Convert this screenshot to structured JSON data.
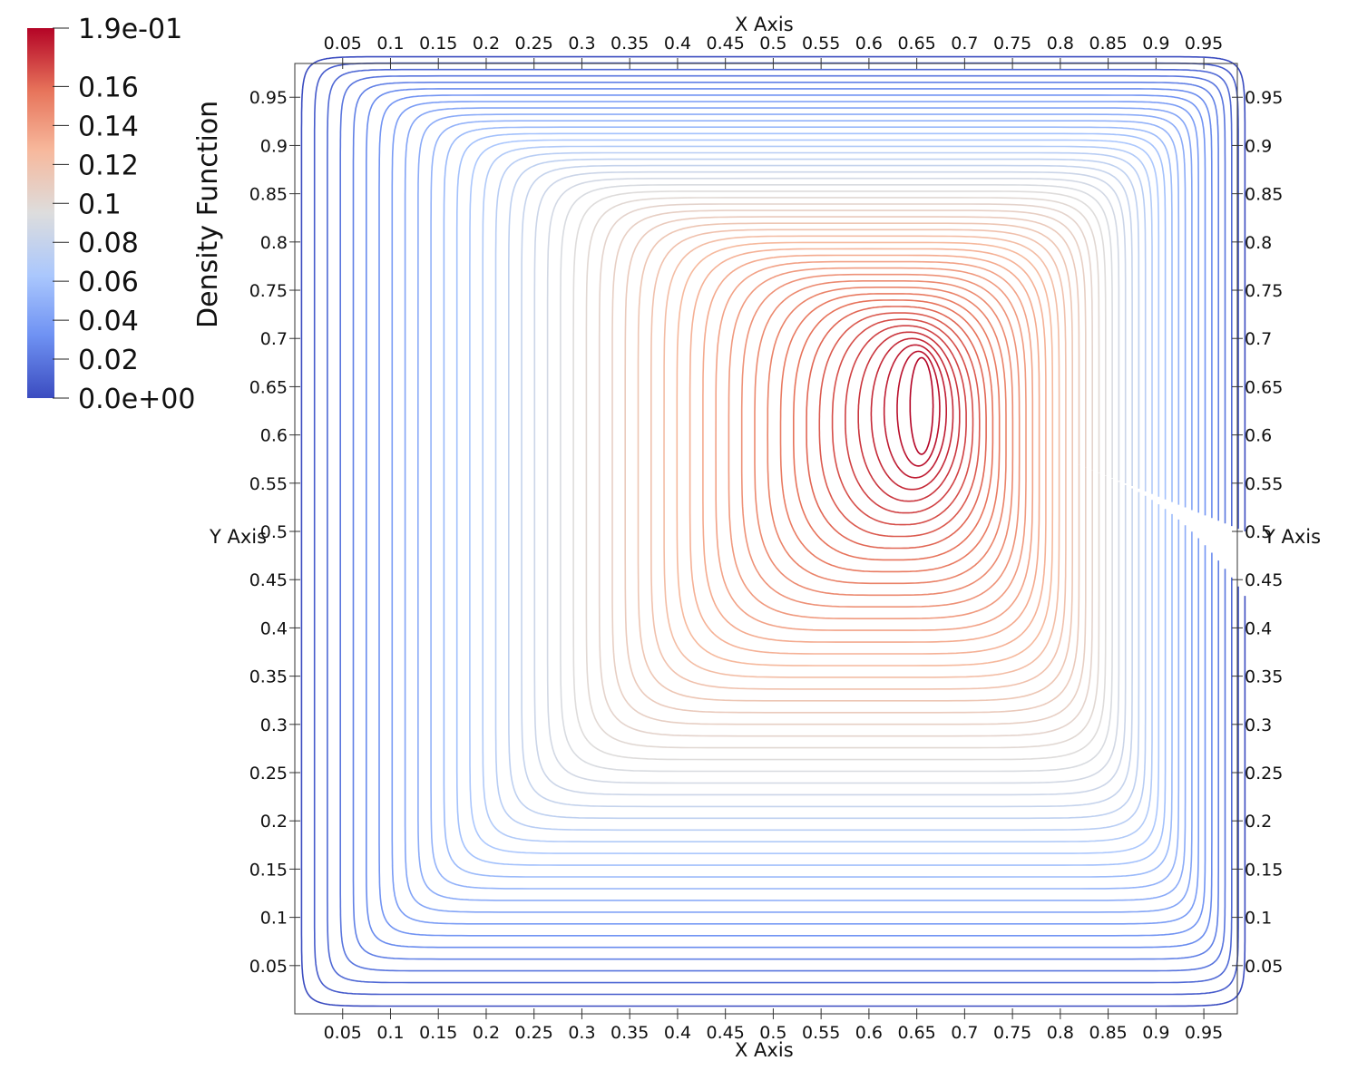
{
  "chart_data": {
    "type": "contour",
    "colorbar": {
      "title": "Density Function",
      "range": [
        0.0,
        0.19
      ],
      "tick_values": [
        0.19,
        0.16,
        0.14,
        0.12,
        0.1,
        0.08,
        0.06,
        0.04,
        0.02,
        0.0
      ],
      "tick_labels": [
        "1.9e-01",
        "0.16",
        "0.14",
        "0.12",
        "0.1",
        "0.08",
        "0.06",
        "0.04",
        "0.02",
        "0.0e+00"
      ],
      "colormap": [
        "#3b4cc0",
        "#6f92f3",
        "#aac7fd",
        "#dddddd",
        "#f7b89c",
        "#e7745b",
        "#b40426"
      ]
    },
    "x_axis": {
      "title": "X Axis",
      "range": [
        0.0,
        0.985
      ],
      "ticks": [
        0.05,
        0.1,
        0.15,
        0.2,
        0.25,
        0.3,
        0.35,
        0.4,
        0.45,
        0.5,
        0.55,
        0.6,
        0.65,
        0.7,
        0.75,
        0.8,
        0.85,
        0.9,
        0.95
      ],
      "tick_labels": [
        "0.05",
        "0.1",
        "0.15",
        "0.2",
        "0.25",
        "0.3",
        "0.35",
        "0.4",
        "0.45",
        "0.5",
        "0.55",
        "0.6",
        "0.65",
        "0.7",
        "0.75",
        "0.8",
        "0.85",
        "0.9",
        "0.95"
      ]
    },
    "y_axis": {
      "title": "Y Axis",
      "range": [
        0.0,
        0.985
      ],
      "ticks": [
        0.05,
        0.1,
        0.15,
        0.2,
        0.25,
        0.3,
        0.35,
        0.4,
        0.45,
        0.5,
        0.55,
        0.6,
        0.65,
        0.7,
        0.75,
        0.8,
        0.85,
        0.9,
        0.95
      ],
      "tick_labels": [
        "0.05",
        "0.1",
        "0.15",
        "0.2",
        "0.25",
        "0.3",
        "0.35",
        "0.4",
        "0.45",
        "0.5",
        "0.55",
        "0.6",
        "0.65",
        "0.7",
        "0.75",
        "0.8",
        "0.85",
        "0.9",
        "0.95"
      ]
    },
    "peak": {
      "x": 0.655,
      "y": 0.63,
      "value": 0.19
    },
    "contour_count": 48,
    "grid": false
  }
}
